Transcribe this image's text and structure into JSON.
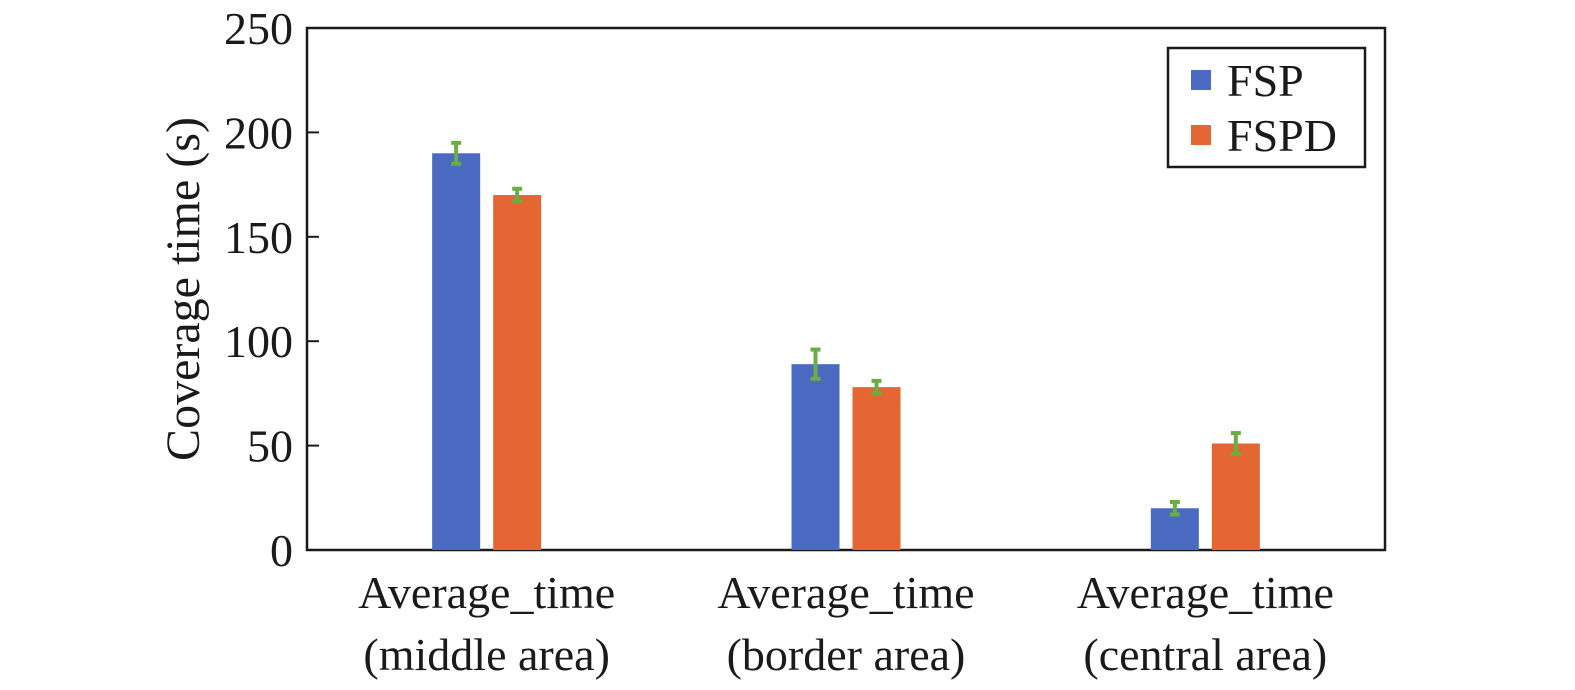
{
  "chart_data": {
    "type": "bar",
    "title": "",
    "xlabel": "",
    "ylabel": "Coverage time (s)",
    "ylim": [
      0,
      250
    ],
    "yticks": [
      0,
      50,
      100,
      150,
      200,
      250
    ],
    "grid": false,
    "legend_position": "top-right",
    "categories": [
      [
        "Average_time",
        "(middle area)"
      ],
      [
        "Average_time",
        "(border area)"
      ],
      [
        "Average_time",
        "(central area)"
      ]
    ],
    "series": [
      {
        "name": "FSP",
        "color": "#4A6BC1",
        "values": [
          190,
          89,
          20
        ],
        "errors": [
          5,
          7,
          3
        ]
      },
      {
        "name": "FSPD",
        "color": "#E36633",
        "values": [
          170,
          78,
          51
        ],
        "errors": [
          3,
          3,
          5
        ]
      }
    ],
    "error_bar_color": "#6AAE43"
  }
}
